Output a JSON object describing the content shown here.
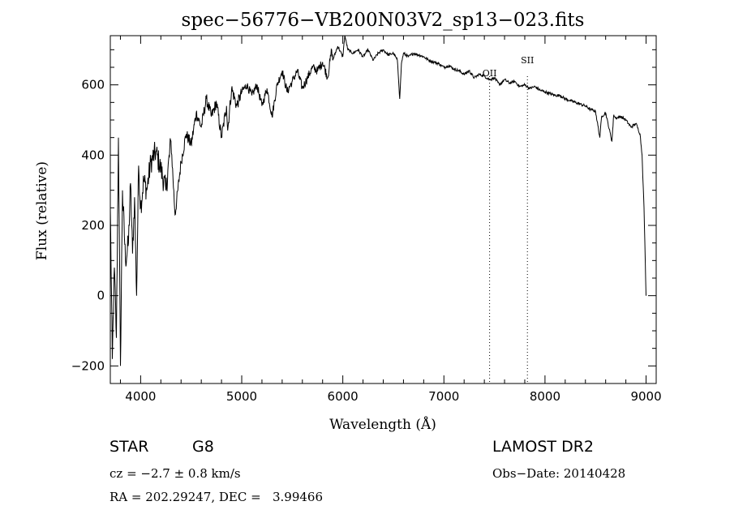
{
  "chart_data": {
    "type": "line",
    "title": "spec−56776−VB200N03V2_sp13−023.fits",
    "xlabel": "Wavelength (Å)",
    "ylabel": "Flux (relative)",
    "xlim": [
      3700,
      9100
    ],
    "ylim": [
      -250,
      740
    ],
    "x_ticks": [
      4000,
      5000,
      6000,
      7000,
      8000,
      9000
    ],
    "y_ticks": [
      -200,
      0,
      200,
      400,
      600
    ],
    "grid": false,
    "series": [
      {
        "x": [
          3700,
          3720,
          3740,
          3760,
          3780,
          3800,
          3820,
          3850,
          3880,
          3900,
          3920,
          3940,
          3960,
          3980,
          4000,
          4030,
          4060,
          4100,
          4150,
          4200,
          4250,
          4300,
          4340,
          4400,
          4450,
          4500,
          4550,
          4600,
          4650,
          4700,
          4750,
          4800,
          4850,
          4861,
          4900,
          4950,
          5000,
          5050,
          5100,
          5150,
          5200,
          5250,
          5300,
          5350,
          5400,
          5450,
          5500,
          5550,
          5600,
          5650,
          5700,
          5750,
          5800,
          5850,
          5890,
          5900,
          5950,
          6000,
          6020,
          6050,
          6100,
          6150,
          6200,
          6250,
          6300,
          6350,
          6400,
          6450,
          6500,
          6540,
          6563,
          6580,
          6600,
          6650,
          6700,
          6750,
          6800,
          6850,
          6900,
          6950,
          7000,
          7050,
          7100,
          7150,
          7200,
          7250,
          7300,
          7350,
          7400,
          7450,
          7500,
          7550,
          7600,
          7650,
          7700,
          7750,
          7800,
          7850,
          7900,
          7950,
          8000,
          8050,
          8100,
          8150,
          8200,
          8250,
          8300,
          8350,
          8400,
          8450,
          8500,
          8542,
          8560,
          8600,
          8662,
          8680,
          8700,
          8750,
          8800,
          8850,
          8900,
          8940,
          8960,
          8980,
          9000
        ],
        "values": [
          250,
          -180,
          80,
          -120,
          450,
          -200,
          300,
          100,
          150,
          320,
          120,
          280,
          0,
          370,
          250,
          330,
          300,
          380,
          410,
          360,
          300,
          440,
          230,
          380,
          460,
          430,
          520,
          480,
          560,
          510,
          550,
          450,
          540,
          470,
          590,
          540,
          580,
          600,
          570,
          600,
          540,
          590,
          510,
          600,
          640,
          580,
          610,
          640,
          590,
          620,
          650,
          640,
          665,
          620,
          700,
          670,
          710,
          680,
          740,
          700,
          690,
          700,
          680,
          700,
          670,
          690,
          700,
          685,
          690,
          670,
          560,
          660,
          690,
          680,
          690,
          685,
          680,
          670,
          665,
          660,
          650,
          655,
          645,
          640,
          630,
          640,
          620,
          630,
          625,
          615,
          620,
          600,
          615,
          605,
          610,
          595,
          600,
          590,
          595,
          585,
          580,
          575,
          570,
          570,
          560,
          555,
          550,
          545,
          540,
          530,
          525,
          450,
          510,
          520,
          440,
          515,
          505,
          510,
          500,
          480,
          490,
          460,
          400,
          250,
          0
        ]
      }
    ],
    "line_markers": [
      {
        "label": "OII",
        "x": 7452
      },
      {
        "label": "SII",
        "x": 7826
      }
    ]
  },
  "info": {
    "class_label": "STAR",
    "subclass_label": "G8",
    "survey": "LAMOST DR2",
    "cz": "cz = −2.7 ± 0.8 km/s",
    "obs_date": "Obs−Date: 20140428",
    "radec": "RA = 202.29247, DEC =   3.99466"
  }
}
